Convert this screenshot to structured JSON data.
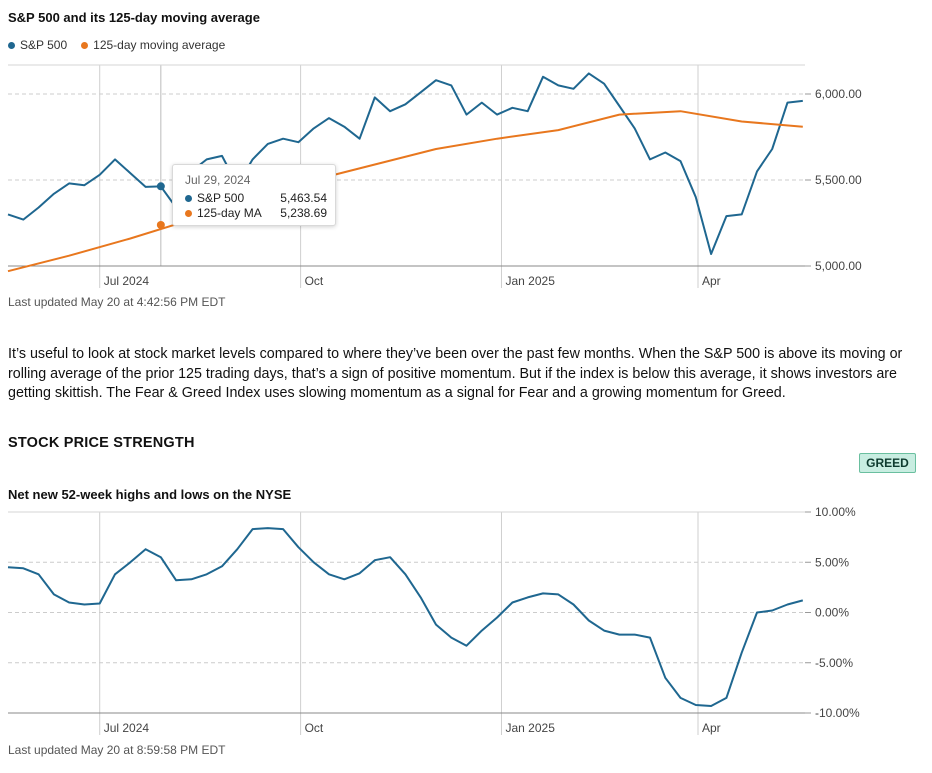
{
  "colors": {
    "sp500": "#1f6790",
    "ma": "#e8771e",
    "line2": "#1f6790",
    "grid": "#c8c8c8",
    "badge_bg": "#c8ede1"
  },
  "legend": {
    "sp500": "S&P 500",
    "ma": "125-day moving average"
  },
  "tooltip": {
    "date": "Jul 29, 2024",
    "sp500_label": "S&P 500",
    "sp500_value": "5,463.54",
    "ma_label": "125-day MA",
    "ma_value": "5,238.69"
  },
  "updated1": "Last updated May 20 at 4:42:56 PM EDT",
  "paragraph": "It’s useful to look at stock market levels compared to where they’ve been over the past few months. When the S&P 500 is above its moving or rolling average of the prior 125 trading days, that’s a sign of positive momentum. But if the index is below this average, it shows investors are getting skittish. The Fear & Greed Index uses slowing momentum as a signal for Fear and a growing momentum for Greed.",
  "section_title": "STOCK PRICE STRENGTH",
  "badge": "GREED",
  "updated2": "Last updated May 20 at 8:59:58 PM EDT",
  "chart_data": [
    {
      "type": "line",
      "title": "S&P 500 and its 125-day moving average",
      "x_ticks": [
        "Jul 2024",
        "Oct",
        "Jan 2025",
        "Apr"
      ],
      "y_ticks": [
        "6,000.00",
        "5,500.00",
        "5,000.00"
      ],
      "y_tick_values": [
        6000,
        5500,
        5000
      ],
      "ylim": [
        4900,
        6200
      ],
      "grid": true,
      "legend_position": "top-left",
      "series": [
        {
          "name": "S&P 500",
          "color": "#1f6790",
          "x": [
            "2024-05-20",
            "2024-05-27",
            "2024-06-03",
            "2024-06-10",
            "2024-06-17",
            "2024-06-24",
            "2024-07-01",
            "2024-07-08",
            "2024-07-15",
            "2024-07-22",
            "2024-07-29",
            "2024-08-05",
            "2024-08-12",
            "2024-08-19",
            "2024-08-26",
            "2024-09-02",
            "2024-09-09",
            "2024-09-16",
            "2024-09-23",
            "2024-09-30",
            "2024-10-07",
            "2024-10-14",
            "2024-10-21",
            "2024-10-28",
            "2024-11-04",
            "2024-11-11",
            "2024-11-18",
            "2024-11-25",
            "2024-12-02",
            "2024-12-09",
            "2024-12-16",
            "2024-12-23",
            "2024-12-30",
            "2025-01-06",
            "2025-01-13",
            "2025-01-20",
            "2025-01-27",
            "2025-02-03",
            "2025-02-10",
            "2025-02-17",
            "2025-02-24",
            "2025-03-03",
            "2025-03-10",
            "2025-03-17",
            "2025-03-24",
            "2025-03-31",
            "2025-04-07",
            "2025-04-14",
            "2025-04-21",
            "2025-04-28",
            "2025-05-05",
            "2025-05-12",
            "2025-05-19"
          ],
          "values": [
            5300,
            5270,
            5340,
            5420,
            5480,
            5470,
            5530,
            5620,
            5540,
            5460,
            5463,
            5340,
            5550,
            5620,
            5640,
            5470,
            5620,
            5710,
            5740,
            5720,
            5800,
            5860,
            5810,
            5740,
            5980,
            5900,
            5940,
            6010,
            6080,
            6050,
            5880,
            5950,
            5880,
            5920,
            5900,
            6100,
            6050,
            6030,
            6120,
            6060,
            5930,
            5800,
            5620,
            5660,
            5610,
            5400,
            5070,
            5290,
            5300,
            5550,
            5680,
            5950,
            5960
          ]
        },
        {
          "name": "125-day moving average",
          "color": "#e8771e",
          "x": [
            "2024-05-20",
            "2024-06-17",
            "2024-07-15",
            "2024-08-12",
            "2024-09-09",
            "2024-10-07",
            "2024-11-04",
            "2024-12-02",
            "2024-12-30",
            "2025-01-27",
            "2025-02-24",
            "2025-03-24",
            "2025-04-21",
            "2025-05-19"
          ],
          "values": [
            4970,
            5060,
            5160,
            5270,
            5390,
            5500,
            5590,
            5680,
            5740,
            5790,
            5880,
            5900,
            5840,
            5810
          ]
        }
      ]
    },
    {
      "type": "line",
      "title": "Net new 52-week highs and lows on the NYSE",
      "x_ticks": [
        "Jul 2024",
        "Oct",
        "Jan 2025",
        "Apr"
      ],
      "y_ticks": [
        "10.00%",
        "5.00%",
        "0.00%",
        "-5.00%",
        "-10.00%"
      ],
      "y_tick_values": [
        10,
        5,
        0,
        -5,
        -10
      ],
      "ylim": [
        -10,
        10
      ],
      "grid": true,
      "series": [
        {
          "color": "#1f6790",
          "x": [
            "2024-05-20",
            "2024-05-27",
            "2024-06-03",
            "2024-06-10",
            "2024-06-17",
            "2024-06-24",
            "2024-07-01",
            "2024-07-08",
            "2024-07-15",
            "2024-07-22",
            "2024-07-29",
            "2024-08-05",
            "2024-08-12",
            "2024-08-19",
            "2024-08-26",
            "2024-09-02",
            "2024-09-09",
            "2024-09-16",
            "2024-09-23",
            "2024-09-30",
            "2024-10-07",
            "2024-10-14",
            "2024-10-21",
            "2024-10-28",
            "2024-11-04",
            "2024-11-11",
            "2024-11-18",
            "2024-11-25",
            "2024-12-02",
            "2024-12-09",
            "2024-12-16",
            "2024-12-23",
            "2024-12-30",
            "2025-01-06",
            "2025-01-13",
            "2025-01-20",
            "2025-01-27",
            "2025-02-03",
            "2025-02-10",
            "2025-02-17",
            "2025-02-24",
            "2025-03-03",
            "2025-03-10",
            "2025-03-17",
            "2025-03-24",
            "2025-03-31",
            "2025-04-07",
            "2025-04-14",
            "2025-04-21",
            "2025-04-28",
            "2025-05-05",
            "2025-05-12",
            "2025-05-19"
          ],
          "values": [
            4.5,
            4.4,
            3.8,
            1.8,
            1.0,
            0.8,
            0.9,
            3.8,
            5.0,
            6.3,
            5.5,
            3.2,
            3.3,
            3.8,
            4.6,
            6.3,
            8.3,
            8.4,
            8.3,
            6.5,
            5.0,
            3.8,
            3.3,
            3.9,
            5.2,
            5.5,
            3.8,
            1.5,
            -1.2,
            -2.5,
            -3.3,
            -1.8,
            -0.5,
            1.0,
            1.5,
            1.9,
            1.8,
            0.8,
            -0.8,
            -1.8,
            -2.2,
            -2.2,
            -2.5,
            -6.5,
            -8.5,
            -9.2,
            -9.3,
            -8.5,
            -4.0,
            0.0,
            0.2,
            0.8,
            1.2
          ]
        }
      ]
    }
  ]
}
